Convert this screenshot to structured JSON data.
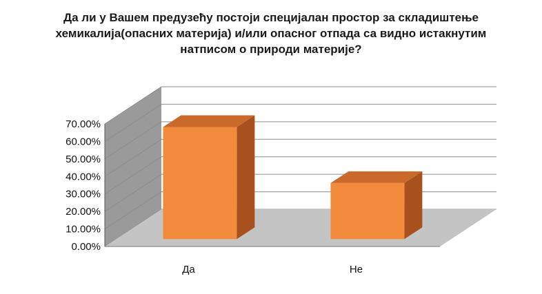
{
  "chart_data": {
    "type": "bar",
    "title": "Да ли у Вашем предузећу постоји специјалан простор за складиштење хемикалија(опасних материја) и/или опасног отпада са видно истакнутим натписом о природи материје?",
    "categories": [
      "Да",
      "Не"
    ],
    "series": [
      {
        "values": [
          64,
          32
        ]
      }
    ],
    "ylim": [
      0,
      70
    ],
    "yticks": [
      "0.00%",
      "10.00%",
      "20.00%",
      "30.00%",
      "40.00%",
      "50.00%",
      "60.00%",
      "70.00%"
    ],
    "grid": true,
    "style": "3d-column",
    "colors": {
      "bar_front": "#f28b3c",
      "bar_side": "#a9501f",
      "bar_top": "#c96a2a",
      "wall": "#9a9a9a",
      "floor": "#c4c4c4",
      "gridline": "#8c8c8c"
    }
  }
}
